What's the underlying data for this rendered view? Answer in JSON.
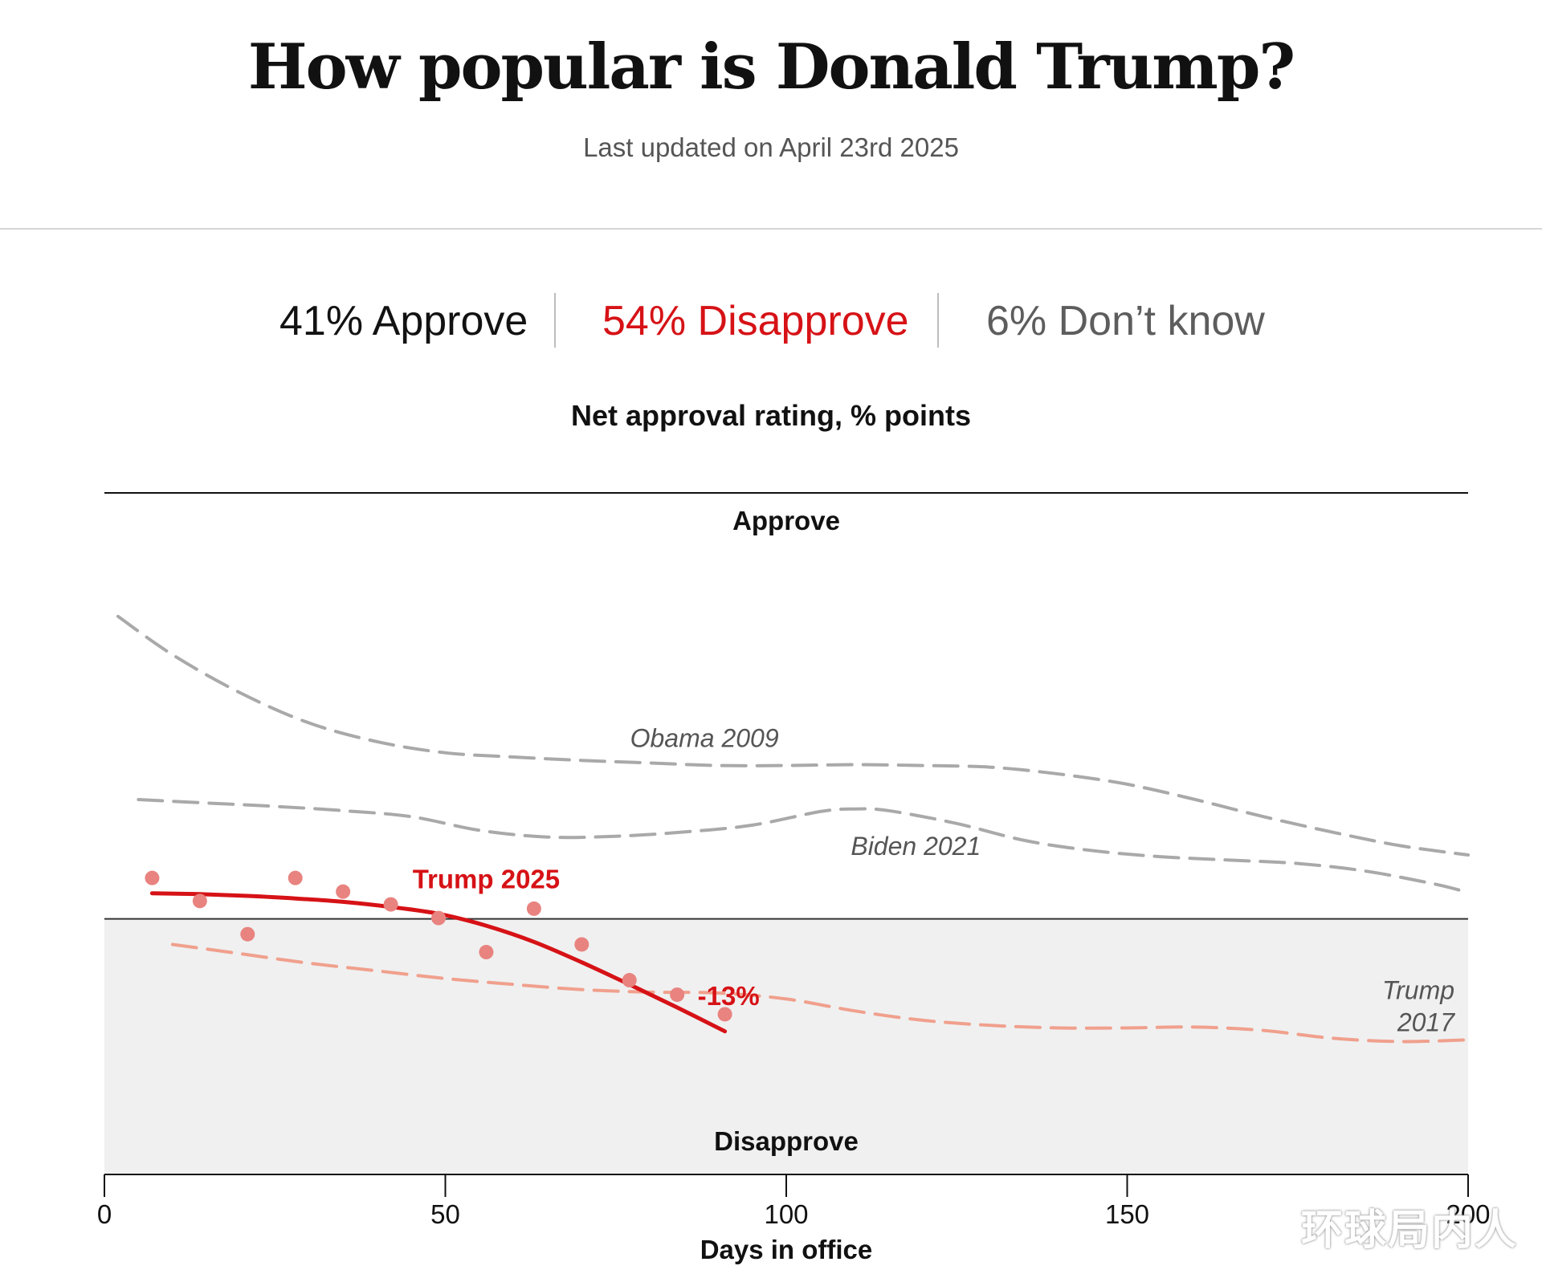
{
  "header": {
    "title": "How popular is Donald Trump?",
    "updated": "Last updated on April 23rd 2025"
  },
  "summary": {
    "approve": "41% Approve",
    "disapprove": "54% Disapprove",
    "dont_know": "6% Don’t know"
  },
  "watermark": "环球局内人",
  "chart_data": {
    "type": "line",
    "title": "Net approval rating, % points",
    "xlabel": "Days in office",
    "ylabel": "",
    "xlim": [
      0,
      200
    ],
    "ylim": [
      -30,
      50
    ],
    "x_ticks": [
      0,
      50,
      100,
      150,
      200
    ],
    "grid": false,
    "zones": {
      "upper": "Approve",
      "lower": "Disapprove"
    },
    "colors": {
      "trump2025": "#d61216",
      "trump2025_points": "#e8837f",
      "trump2017": "#f0a08d",
      "others": "#a9a9a9",
      "disapprove_bg": "#f0f0f0"
    },
    "series": [
      {
        "name": "Obama 2009",
        "style": "dashed",
        "x": [
          2,
          10,
          20,
          30,
          40,
          50,
          60,
          70,
          80,
          90,
          100,
          110,
          120,
          130,
          140,
          150,
          160,
          170,
          180,
          190,
          200
        ],
        "y": [
          35.5,
          31,
          26.5,
          23,
          20.8,
          19.5,
          19,
          18.6,
          18.3,
          18,
          18,
          18.1,
          18,
          17.8,
          17,
          15.8,
          14,
          12,
          10.2,
          8.6,
          7.5
        ]
      },
      {
        "name": "Biden 2021",
        "style": "dashed",
        "x": [
          5,
          15,
          25,
          35,
          45,
          55,
          65,
          75,
          85,
          95,
          105,
          110,
          115,
          125,
          135,
          145,
          155,
          165,
          175,
          185,
          195,
          200
        ],
        "y": [
          14,
          13.6,
          13.2,
          12.7,
          12,
          10.4,
          9.6,
          9.7,
          10.2,
          11,
          12.6,
          12.9,
          12.7,
          11.2,
          9.2,
          8,
          7.3,
          6.9,
          6.5,
          5.6,
          4.1,
          3.1
        ]
      },
      {
        "name": "Trump 2017",
        "style": "dashed",
        "x": [
          10,
          20,
          30,
          40,
          50,
          60,
          70,
          80,
          90,
          100,
          110,
          120,
          130,
          140,
          150,
          160,
          170,
          180,
          190,
          200
        ],
        "y": [
          -3,
          -4.1,
          -5.2,
          -6.1,
          -7,
          -7.7,
          -8.3,
          -8.6,
          -8.7,
          -9.4,
          -10.8,
          -11.9,
          -12.5,
          -12.8,
          -12.8,
          -12.7,
          -13.1,
          -14,
          -14.4,
          -14.2
        ]
      },
      {
        "name": "Trump 2025",
        "style": "solid",
        "x": [
          7,
          14,
          21,
          28,
          35,
          42,
          49,
          56,
          63,
          70,
          77,
          84,
          91
        ],
        "y": [
          3,
          2.9,
          2.7,
          2.4,
          2,
          1.4,
          0.6,
          -0.8,
          -2.7,
          -5.1,
          -7.7,
          -10.4,
          -13.2
        ],
        "points": [
          4.8,
          2.1,
          -1.8,
          4.8,
          3.2,
          1.7,
          0.1,
          -3.9,
          1.2,
          -3,
          -7.2,
          -8.9,
          -11.2
        ],
        "end_label": "-13%"
      }
    ]
  }
}
